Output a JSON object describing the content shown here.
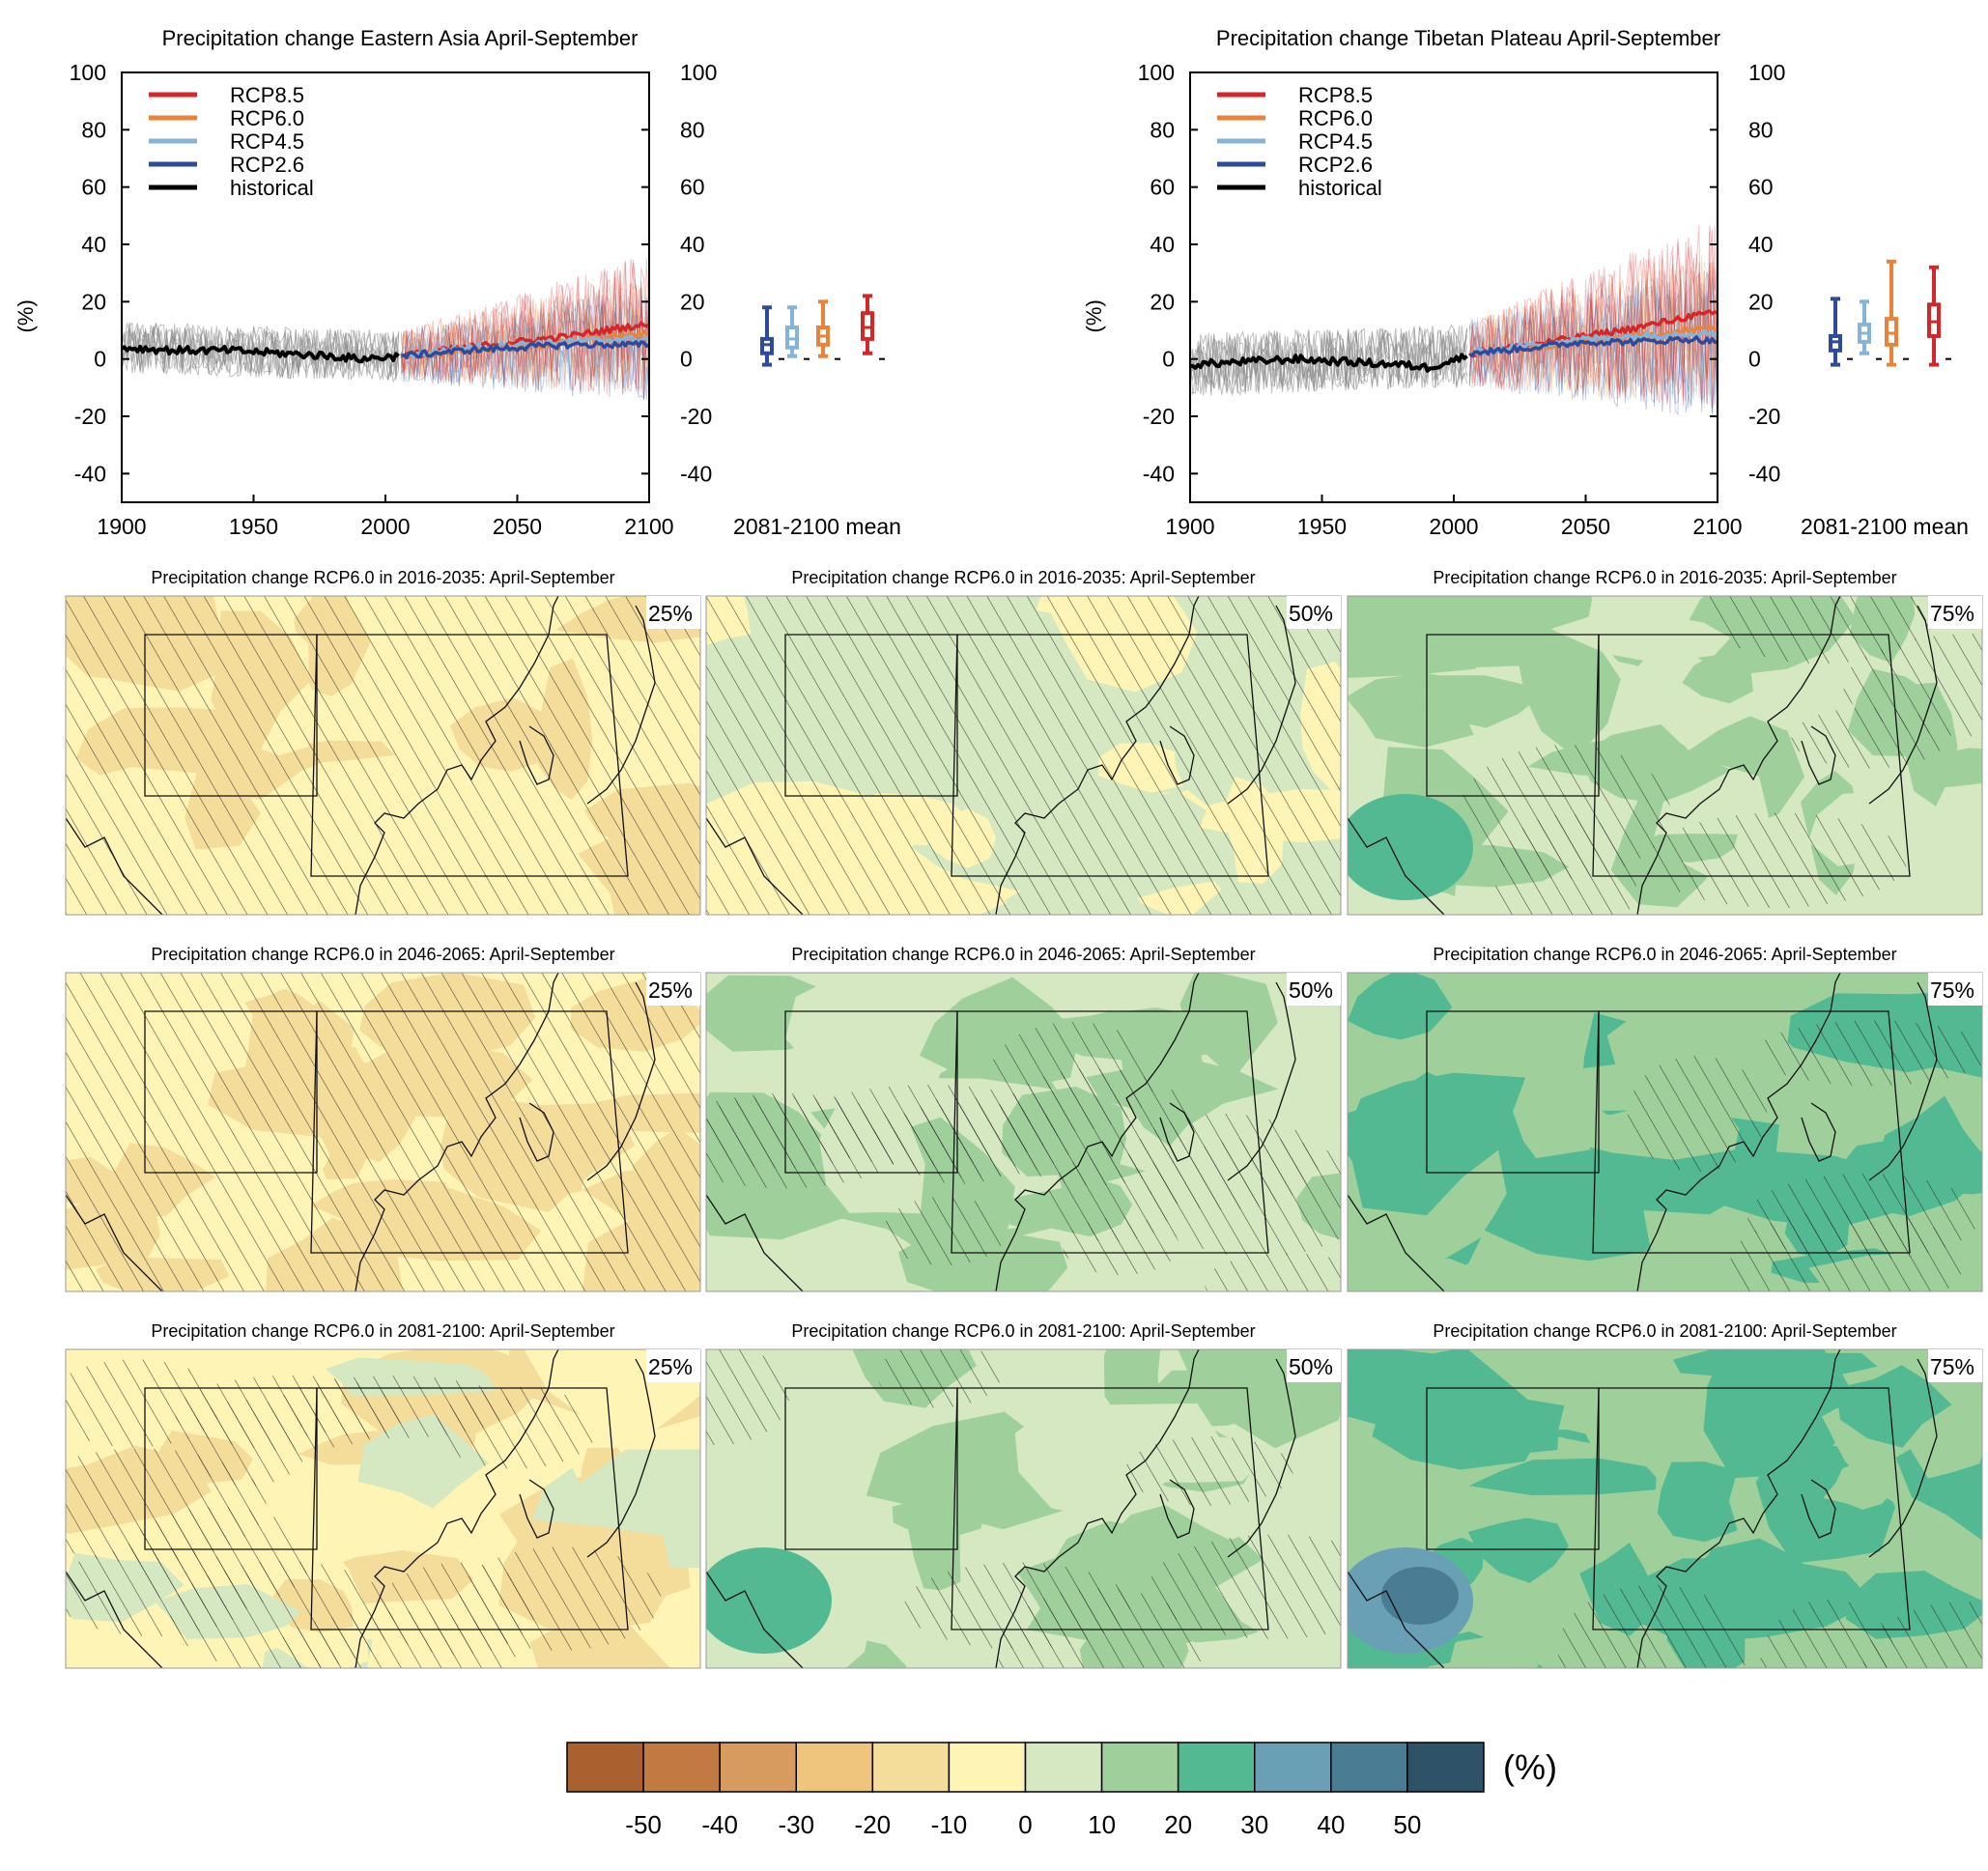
{
  "colors": {
    "rcp85": "#d62728",
    "rcp60": "#e9833a",
    "rcp45": "#86b4d9",
    "rcp26": "#2f4a9a",
    "historical": "#000000",
    "hist_members": "#8a8a8a",
    "scale": [
      "#a8612f",
      "#c17b40",
      "#d79a5f",
      "#efc57e",
      "#f4dc9a",
      "#fdf4b5",
      "#d5e8c1",
      "#9fd09c",
      "#52b993",
      "#6aa0b5",
      "#4a7c93",
      "#2e5369"
    ]
  },
  "chart_data": [
    {
      "type": "line",
      "title": "Precipitation change Eastern Asia April-September",
      "ylabel": "(%)",
      "xlim": [
        1900,
        2100
      ],
      "ylim": [
        -50,
        100
      ],
      "xticks": [
        "1900",
        "1950",
        "2000",
        "2050",
        "2100"
      ],
      "yticks": [
        "100",
        "80",
        "60",
        "40",
        "20",
        "0",
        "-20",
        "-40"
      ],
      "legend_position": "top-left",
      "series": [
        {
          "name": "RCP8.5",
          "x": [
            2006,
            2030,
            2050,
            2070,
            2090,
            2100
          ],
          "y": [
            1,
            4,
            6,
            8,
            11,
            12
          ]
        },
        {
          "name": "RCP6.0",
          "x": [
            2006,
            2030,
            2050,
            2070,
            2090,
            2100
          ],
          "y": [
            1,
            3,
            4,
            6,
            8,
            9
          ]
        },
        {
          "name": "RCP4.5",
          "x": [
            2006,
            2030,
            2050,
            2070,
            2090,
            2100
          ],
          "y": [
            1,
            4,
            5,
            6,
            7,
            7
          ]
        },
        {
          "name": "RCP2.6",
          "x": [
            2006,
            2030,
            2050,
            2070,
            2090,
            2100
          ],
          "y": [
            1,
            3,
            4,
            5,
            5,
            5
          ]
        },
        {
          "name": "historical",
          "x": [
            1900,
            1920,
            1940,
            1960,
            1980,
            1990,
            2005
          ],
          "y": [
            4,
            3,
            3,
            2,
            1,
            0,
            1
          ]
        }
      ],
      "boxes": {
        "label": "2081-2100 mean",
        "items": [
          {
            "name": "RCP2.6",
            "min": -2,
            "q1": 2,
            "median": 5,
            "q3": 7,
            "max": 18
          },
          {
            "name": "RCP4.5",
            "min": 1,
            "q1": 4,
            "median": 7,
            "q3": 11,
            "max": 18
          },
          {
            "name": "RCP6.0",
            "min": 1,
            "q1": 5,
            "median": 8,
            "q3": 11,
            "max": 20
          },
          {
            "name": "RCP8.5",
            "min": 2,
            "q1": 7,
            "median": 11,
            "q3": 16,
            "max": 22
          }
        ]
      }
    },
    {
      "type": "line",
      "title": "Precipitation change Tibetan Plateau April-September",
      "ylabel": "(%)",
      "xlim": [
        1900,
        2100
      ],
      "ylim": [
        -50,
        100
      ],
      "xticks": [
        "1900",
        "1950",
        "2000",
        "2050",
        "2100"
      ],
      "yticks": [
        "100",
        "80",
        "60",
        "40",
        "20",
        "0",
        "-20",
        "-40"
      ],
      "legend_position": "top-left",
      "series": [
        {
          "name": "RCP8.5",
          "x": [
            2006,
            2030,
            2050,
            2070,
            2090,
            2100
          ],
          "y": [
            2,
            5,
            8,
            11,
            15,
            16
          ]
        },
        {
          "name": "RCP6.0",
          "x": [
            2006,
            2030,
            2050,
            2070,
            2090,
            2100
          ],
          "y": [
            2,
            4,
            6,
            8,
            10,
            11
          ]
        },
        {
          "name": "RCP4.5",
          "x": [
            2006,
            2030,
            2050,
            2070,
            2090,
            2100
          ],
          "y": [
            2,
            5,
            7,
            8,
            9,
            9
          ]
        },
        {
          "name": "RCP2.6",
          "x": [
            2006,
            2030,
            2050,
            2070,
            2090,
            2100
          ],
          "y": [
            2,
            4,
            6,
            6,
            7,
            6
          ]
        },
        {
          "name": "historical",
          "x": [
            1900,
            1920,
            1940,
            1960,
            1980,
            1990,
            2005
          ],
          "y": [
            -2,
            -1,
            0,
            -1,
            -2,
            -3,
            1
          ]
        }
      ],
      "boxes": {
        "label": "2081-2100 mean",
        "items": [
          {
            "name": "RCP2.6",
            "min": -2,
            "q1": 3,
            "median": 6,
            "q3": 8,
            "max": 21
          },
          {
            "name": "RCP4.5",
            "min": 2,
            "q1": 6,
            "median": 9,
            "q3": 12,
            "max": 20
          },
          {
            "name": "RCP6.0",
            "min": -2,
            "q1": 5,
            "median": 9,
            "q3": 14,
            "max": 34
          },
          {
            "name": "RCP8.5",
            "min": -2,
            "q1": 8,
            "median": 13,
            "q3": 19,
            "max": 32
          }
        ]
      }
    },
    {
      "type": "heatmap",
      "panels": [
        {
          "title": "Precipitation change RCP6.0 in 2016-2035: April-September",
          "label": "25%",
          "base": 5,
          "dry": 0.45,
          "wet": 0.0,
          "hatch": 1.0
        },
        {
          "title": "Precipitation change RCP6.0 in 2016-2035: April-September",
          "label": "50%",
          "base": 6,
          "dry": 0.18,
          "wet": 0.0,
          "hatch": 0.95
        },
        {
          "title": "Precipitation change RCP6.0 in 2016-2035: April-September",
          "label": "75%",
          "base": 6,
          "dry": 0.0,
          "wet": 0.45,
          "hatch": 0.4
        },
        {
          "title": "Precipitation change RCP6.0 in 2046-2065: April-September",
          "label": "25%",
          "base": 5,
          "dry": 0.55,
          "wet": 0.0,
          "hatch": 1.0
        },
        {
          "title": "Precipitation change RCP6.0 in 2046-2065: April-September",
          "label": "50%",
          "base": 6,
          "dry": 0.05,
          "wet": 0.12,
          "hatch": 0.9
        },
        {
          "title": "Precipitation change RCP6.0 in 2046-2065: April-September",
          "label": "75%",
          "base": 7,
          "dry": 0.0,
          "wet": 0.3,
          "hatch": 0.3
        },
        {
          "title": "Precipitation change RCP6.0 in 2081-2100: April-September",
          "label": "25%",
          "base": 5,
          "dry": 0.42,
          "wet": 0.05,
          "hatch": 0.85
        },
        {
          "title": "Precipitation change RCP6.0 in 2081-2100: April-September",
          "label": "50%",
          "base": 6,
          "dry": 0.0,
          "wet": 0.45,
          "hatch": 0.45
        },
        {
          "title": "Precipitation change RCP6.0 in 2081-2100: April-September",
          "label": "75%",
          "base": 7,
          "dry": 0.0,
          "wet": 0.55,
          "hatch": 0.2
        }
      ]
    }
  ],
  "colorbar": {
    "ticks": [
      "-50",
      "-40",
      "-30",
      "-20",
      "-10",
      "0",
      "10",
      "20",
      "30",
      "40",
      "50"
    ],
    "unit": "(%)"
  }
}
